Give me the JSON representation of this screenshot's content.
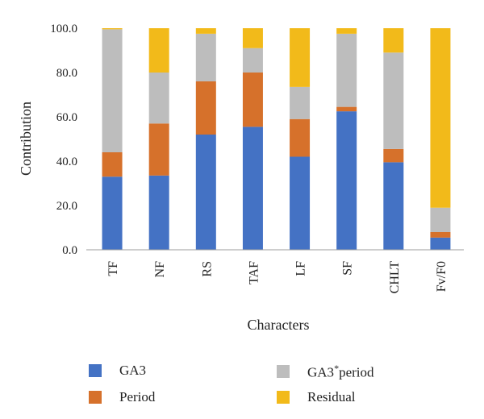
{
  "chart_data": {
    "type": "bar",
    "stacked": true,
    "xlabel": "Characters",
    "ylabel": "Contribution",
    "ylim": [
      0,
      100
    ],
    "yticks": [
      "0.0",
      "20.0",
      "40.0",
      "60.0",
      "80.0",
      "100.0"
    ],
    "grid": false,
    "categories": [
      "TF",
      "NF",
      "RS",
      "TAF",
      "LF",
      "SF",
      "CHLT",
      "Fv/F0"
    ],
    "series": [
      {
        "name": "GA3",
        "color": "#4472C4",
        "values": [
          33,
          33.5,
          52,
          55.5,
          42,
          62.5,
          39.5,
          5.5
        ]
      },
      {
        "name": "Period",
        "color": "#D6712B",
        "values": [
          11,
          23.5,
          24,
          24.5,
          17,
          2,
          6,
          2.5
        ]
      },
      {
        "name": "GA3*period",
        "color": "#BDBDBD",
        "values": [
          55.5,
          23,
          21.5,
          11,
          14.5,
          33,
          43.5,
          11
        ]
      },
      {
        "name": "Residual",
        "color": "#F2BA1A",
        "values": [
          0.5,
          20,
          2.5,
          9,
          26.5,
          2.5,
          11,
          81
        ]
      }
    ],
    "legend_position": "bottom"
  },
  "legend": {
    "ga3": "GA3",
    "interaction_main": "GA3",
    "interaction_sup": "*",
    "interaction_tail": "period",
    "period": "Period",
    "residual": "Residual"
  }
}
